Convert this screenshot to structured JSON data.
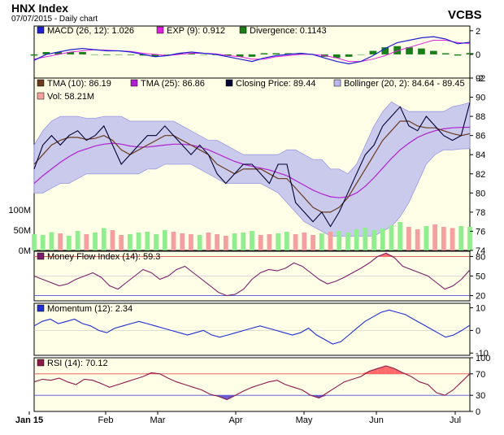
{
  "header": {
    "title": "HNX Index",
    "subtitle": "07/07/2015 - Daily chart",
    "brand": "VCBS"
  },
  "colors": {
    "panel_bg": "#ffffe8",
    "macd": "#1f1fd0",
    "exp": "#e020e0",
    "divergence": "#1a7f1a",
    "tma10": "#6b3a1f",
    "tma25": "#b020d0",
    "close": "#000033",
    "bollinger_fill": "#b8b8ee",
    "vol_up": "#90ee90",
    "vol_down": "#f4a0a0",
    "mfi": "#7a1f6a",
    "momentum": "#1f2fd0",
    "rsi": "#8b1a4a",
    "overbought_fill": "#ff6b6b",
    "oversold_fill": "#6b5bd0"
  },
  "legends": {
    "macd": [
      "MACD (26, 12): 1.026",
      "EXP (9): 0.912",
      "Divergence: 0.1143"
    ],
    "price": [
      "TMA (10): 86.19",
      "TMA (25): 86.86",
      "Closing Price: 89.44",
      "Bollinger (20, 2): 84.64 - 89.45",
      "Vol: 58.21M"
    ],
    "mfi": "Money Flow Index (14): 59.3",
    "momentum": "Momentum (12): 2.34",
    "rsi": "RSI (14): 70.12"
  },
  "months": [
    "Jan 15",
    "Feb",
    "Mar",
    "Apr",
    "May",
    "Jun",
    "Jul"
  ],
  "chart_data": [
    {
      "type": "line",
      "name": "MACD",
      "ylim": [
        -2,
        2.4
      ],
      "yticks": [
        "2",
        "0",
        "-2"
      ],
      "series": [
        {
          "name": "MACD (26, 12)",
          "values": [
            -0.5,
            0.0,
            0.2,
            0.4,
            0.5,
            0.4,
            0.3,
            0.3,
            0.2,
            0.0,
            -0.2,
            -0.1,
            0.1,
            0.2,
            0.1,
            0.0,
            -0.2,
            -0.4,
            -0.6,
            -0.3,
            -0.1,
            0.0,
            0.1,
            0.0,
            -0.3,
            -0.6,
            -0.8,
            -0.6,
            -0.1,
            0.5,
            1.0,
            1.2,
            1.4,
            1.5,
            1.3,
            0.9,
            1.026
          ]
        },
        {
          "name": "EXP (9)",
          "values": [
            -0.4,
            -0.2,
            0.0,
            0.2,
            0.3,
            0.4,
            0.35,
            0.3,
            0.25,
            0.1,
            0.0,
            -0.1,
            0.0,
            0.1,
            0.1,
            0.05,
            -0.1,
            -0.2,
            -0.4,
            -0.4,
            -0.2,
            -0.1,
            0.0,
            0.0,
            -0.1,
            -0.3,
            -0.6,
            -0.6,
            -0.4,
            -0.1,
            0.3,
            0.6,
            0.9,
            1.2,
            1.2,
            1.0,
            0.912
          ]
        },
        {
          "name": "Divergence",
          "values": [
            -0.1,
            0.2,
            0.2,
            0.2,
            0.2,
            0.0,
            -0.05,
            0.0,
            -0.05,
            -0.1,
            -0.2,
            0.0,
            0.1,
            0.1,
            0.0,
            -0.05,
            -0.1,
            -0.2,
            -0.2,
            0.1,
            0.1,
            0.1,
            0.1,
            0.0,
            -0.2,
            -0.3,
            -0.2,
            0.0,
            0.3,
            0.6,
            0.7,
            0.6,
            0.5,
            0.3,
            0.1,
            -0.1,
            0.1143
          ]
        }
      ]
    },
    {
      "type": "line",
      "name": "Price",
      "ylim": [
        74,
        92
      ],
      "yticks": [
        "92",
        "90",
        "88",
        "86",
        "84",
        "82",
        "80",
        "78",
        "76",
        "74"
      ],
      "volume_ticks": [
        "100M",
        "50M",
        "0M"
      ],
      "volume_max": 100,
      "series": [
        {
          "name": "Closing Price",
          "values": [
            82.5,
            85,
            86,
            85,
            86,
            86.5,
            85.5,
            86,
            87,
            85,
            83,
            84,
            85,
            86,
            86,
            87,
            86,
            85,
            84,
            85,
            84,
            82,
            81,
            82,
            83,
            83,
            82,
            81,
            83,
            83,
            79,
            78,
            77,
            78,
            76.5,
            78,
            80,
            82,
            84,
            85,
            87,
            88,
            89,
            87,
            86.5,
            88,
            87,
            86,
            85.5,
            86,
            89.44
          ]
        },
        {
          "name": "TMA (10)",
          "values": [
            83,
            84,
            85,
            85.5,
            85.8,
            85.8,
            85.6,
            85.7,
            86,
            85.5,
            84.5,
            84,
            84.5,
            85,
            85.5,
            86,
            86,
            85.5,
            85,
            84.5,
            84,
            83,
            82.5,
            82,
            82.5,
            82.5,
            82.5,
            82,
            81.5,
            81.5,
            80.5,
            79.5,
            78.5,
            78,
            78,
            78.5,
            79.5,
            81,
            82.5,
            84,
            85.5,
            86.5,
            87.5,
            87.5,
            87,
            86.8,
            86.8,
            86.5,
            86.2,
            86,
            86.19
          ]
        },
        {
          "name": "TMA (25)",
          "values": [
            81,
            81.8,
            82.5,
            83.2,
            83.8,
            84.3,
            84.6,
            84.9,
            85.1,
            85.2,
            85.1,
            84.9,
            84.8,
            84.8,
            84.9,
            85,
            85.1,
            85.1,
            85,
            84.8,
            84.5,
            84.1,
            83.7,
            83.3,
            83,
            82.8,
            82.6,
            82.4,
            82.1,
            81.8,
            81.3,
            80.8,
            80.3,
            79.9,
            79.6,
            79.5,
            79.6,
            80,
            80.7,
            81.6,
            82.6,
            83.6,
            84.5,
            85.2,
            85.8,
            86.2,
            86.5,
            86.7,
            86.8,
            86.85,
            86.86
          ]
        },
        {
          "name": "Bollinger Upper",
          "values": [
            85,
            86.5,
            87.5,
            88,
            88,
            88,
            87.8,
            87.8,
            88,
            88,
            88,
            87.5,
            87.5,
            87.5,
            87.5,
            87.5,
            87.5,
            87,
            86.5,
            86,
            85.5,
            85.5,
            85,
            84.5,
            84,
            84,
            84,
            84,
            84,
            84.5,
            84.5,
            84,
            83.5,
            83.5,
            82.5,
            82.5,
            82,
            83,
            85,
            87,
            88.5,
            89.5,
            89,
            88.5,
            88.5,
            88.5,
            88.5,
            88.5,
            89,
            89.2,
            89.45
          ]
        },
        {
          "name": "Bollinger Lower",
          "values": [
            80,
            80,
            80.5,
            81,
            81,
            81.5,
            82,
            82,
            82,
            82,
            82,
            82,
            82,
            82.5,
            82.5,
            83,
            83,
            83,
            83,
            82.5,
            82,
            81.5,
            81,
            81,
            81,
            81,
            81,
            80.5,
            80,
            79,
            78,
            77,
            76.5,
            76,
            75.5,
            75.5,
            75.5,
            75.5,
            75.5,
            75.5,
            76,
            76.5,
            77.5,
            79,
            81,
            83,
            84,
            84.5,
            84.5,
            84.6,
            84.64
          ]
        },
        {
          "name": "Vol",
          "values": [
            40,
            38,
            45,
            42,
            36,
            48,
            40,
            44,
            55,
            50,
            38,
            40,
            44,
            46,
            40,
            50,
            46,
            42,
            40,
            38,
            44,
            40,
            36,
            42,
            44,
            48,
            38,
            40,
            42,
            46,
            40,
            44,
            38,
            42,
            46,
            48,
            44,
            52,
            56,
            50,
            54,
            62,
            70,
            58,
            52,
            60,
            64,
            58,
            55,
            60,
            58.21
          ]
        }
      ]
    },
    {
      "type": "line",
      "name": "Money Flow Index",
      "ylim": [
        12,
        88
      ],
      "yticks": [
        "80",
        "50",
        "20"
      ],
      "series": [
        {
          "name": "Money Flow Index (14)",
          "values": [
            50,
            45,
            40,
            35,
            38,
            45,
            50,
            55,
            48,
            35,
            30,
            40,
            50,
            60,
            55,
            45,
            50,
            60,
            65,
            55,
            45,
            35,
            25,
            20,
            22,
            30,
            45,
            55,
            60,
            58,
            62,
            70,
            65,
            55,
            45,
            38,
            42,
            48,
            55,
            62,
            70,
            80,
            85,
            78,
            65,
            60,
            55,
            50,
            40,
            30,
            35,
            45,
            59.3
          ]
        }
      ]
    },
    {
      "type": "line",
      "name": "Momentum",
      "ylim": [
        -11,
        12
      ],
      "yticks": [
        "10",
        "0",
        "-10"
      ],
      "series": [
        {
          "name": "Momentum (12)",
          "values": [
            2,
            4,
            5,
            3,
            4,
            5,
            3,
            2,
            0,
            -1,
            1,
            2,
            3,
            4,
            3,
            2,
            1,
            0,
            -1,
            -2,
            -1,
            0,
            -2,
            -3,
            -2,
            -1,
            0,
            1,
            2,
            1,
            0,
            -1,
            -2,
            -1,
            1,
            -2,
            -4,
            -6,
            -5,
            -2,
            1,
            4,
            6,
            8,
            9,
            8,
            7,
            5,
            3,
            1,
            -1,
            -3,
            -2,
            0,
            2.34
          ]
        }
      ]
    },
    {
      "type": "line",
      "name": "RSI",
      "ylim": [
        0,
        100
      ],
      "yticks": [
        "100",
        "70",
        "30",
        "0"
      ],
      "series": [
        {
          "name": "RSI (14)",
          "values": [
            55,
            60,
            58,
            62,
            55,
            50,
            60,
            58,
            52,
            45,
            50,
            55,
            60,
            65,
            72,
            70,
            62,
            55,
            50,
            45,
            40,
            32,
            28,
            22,
            30,
            38,
            45,
            50,
            55,
            58,
            50,
            45,
            40,
            30,
            25,
            35,
            45,
            55,
            60,
            65,
            75,
            80,
            85,
            80,
            72,
            65,
            55,
            50,
            35,
            30,
            40,
            55,
            70.12
          ]
        }
      ]
    }
  ]
}
